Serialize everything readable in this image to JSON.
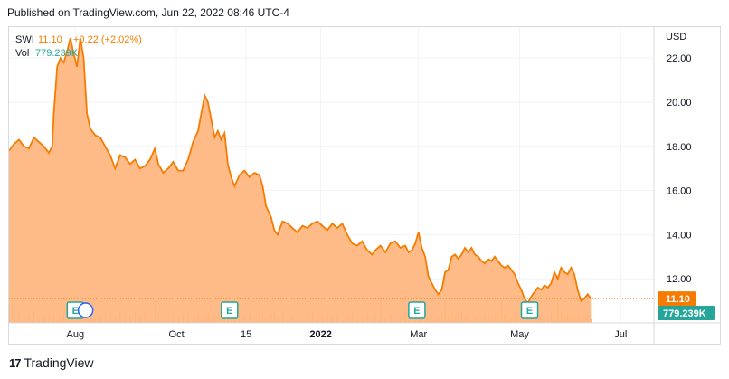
{
  "header": {
    "published": "Published on TradingView.com, Jun 22, 2022 08:46 UTC-4"
  },
  "legend": {
    "symbol": "SWI",
    "price": "11.10",
    "change": "+0.22 (+2.02%)",
    "vol_label": "Vol",
    "vol_value": "779.239K"
  },
  "footer": {
    "brand": "TradingView"
  },
  "colors": {
    "price_line": "#f57c00",
    "price_fill": "#ffb47a",
    "volume": "#f5b58a",
    "vol_badge": "#26a69a",
    "price_badge": "#f57c00",
    "earnings_badge": "#26a69a",
    "dividend_badge": "#2962ff"
  },
  "chart_data": {
    "type": "area",
    "currency": "USD",
    "y_ticks": [
      "12.00",
      "14.00",
      "16.00",
      "18.00",
      "20.00",
      "22.00"
    ],
    "ylim": [
      10.0,
      23.4
    ],
    "x_ticks": [
      {
        "label": "Aug",
        "day": 40,
        "bold": false
      },
      {
        "label": "Oct",
        "day": 101,
        "bold": false
      },
      {
        "label": "15",
        "day": 143,
        "bold": false
      },
      {
        "label": "2022",
        "day": 188,
        "bold": true
      },
      {
        "label": "Mar",
        "day": 247,
        "bold": false
      },
      {
        "label": "May",
        "day": 308,
        "bold": false
      },
      {
        "label": "Jul",
        "day": 369,
        "bold": false
      }
    ],
    "xlim": [
      0,
      389
    ],
    "last_price": 11.1,
    "last_price_label": "11.10",
    "last_volume_label": "779.239K",
    "series": [
      {
        "name": "SWI",
        "points": [
          [
            0,
            17.8
          ],
          [
            3,
            18.1
          ],
          [
            6,
            18.3
          ],
          [
            9,
            18.0
          ],
          [
            12,
            17.9
          ],
          [
            15,
            18.4
          ],
          [
            18,
            18.2
          ],
          [
            21,
            18.0
          ],
          [
            24,
            17.7
          ],
          [
            26,
            18.0
          ],
          [
            27,
            19.5
          ],
          [
            29,
            21.6
          ],
          [
            31,
            22.0
          ],
          [
            33,
            21.8
          ],
          [
            35,
            22.3
          ],
          [
            37,
            22.9
          ],
          [
            39,
            22.2
          ],
          [
            41,
            21.6
          ],
          [
            43,
            22.9
          ],
          [
            45,
            22.0
          ],
          [
            47,
            19.5
          ],
          [
            49,
            18.8
          ],
          [
            52,
            18.5
          ],
          [
            55,
            18.4
          ],
          [
            58,
            18.0
          ],
          [
            61,
            17.6
          ],
          [
            64,
            17.0
          ],
          [
            67,
            17.6
          ],
          [
            70,
            17.5
          ],
          [
            73,
            17.2
          ],
          [
            76,
            17.4
          ],
          [
            79,
            17.0
          ],
          [
            82,
            17.1
          ],
          [
            85,
            17.4
          ],
          [
            88,
            17.9
          ],
          [
            90,
            17.2
          ],
          [
            93,
            16.8
          ],
          [
            96,
            17.0
          ],
          [
            99,
            17.3
          ],
          [
            102,
            16.9
          ],
          [
            105,
            16.9
          ],
          [
            108,
            17.4
          ],
          [
            111,
            18.2
          ],
          [
            114,
            18.7
          ],
          [
            116,
            19.5
          ],
          [
            118,
            20.3
          ],
          [
            120,
            20.0
          ],
          [
            122,
            19.2
          ],
          [
            124,
            18.4
          ],
          [
            126,
            18.7
          ],
          [
            128,
            18.3
          ],
          [
            130,
            18.6
          ],
          [
            132,
            17.2
          ],
          [
            134,
            16.6
          ],
          [
            136,
            16.2
          ],
          [
            139,
            16.7
          ],
          [
            142,
            16.9
          ],
          [
            145,
            16.6
          ],
          [
            148,
            16.8
          ],
          [
            151,
            16.7
          ],
          [
            153,
            16.2
          ],
          [
            155,
            15.3
          ],
          [
            158,
            14.8
          ],
          [
            160,
            14.2
          ],
          [
            162,
            14.0
          ],
          [
            165,
            14.6
          ],
          [
            168,
            14.5
          ],
          [
            171,
            14.3
          ],
          [
            174,
            14.1
          ],
          [
            177,
            14.4
          ],
          [
            180,
            14.3
          ],
          [
            183,
            14.5
          ],
          [
            186,
            14.6
          ],
          [
            189,
            14.4
          ],
          [
            192,
            14.2
          ],
          [
            195,
            14.5
          ],
          [
            198,
            14.3
          ],
          [
            201,
            14.5
          ],
          [
            204,
            14.0
          ],
          [
            207,
            13.6
          ],
          [
            210,
            13.5
          ],
          [
            213,
            13.7
          ],
          [
            216,
            13.3
          ],
          [
            219,
            13.1
          ],
          [
            221,
            13.3
          ],
          [
            224,
            13.5
          ],
          [
            227,
            13.2
          ],
          [
            230,
            13.6
          ],
          [
            233,
            13.7
          ],
          [
            236,
            13.4
          ],
          [
            239,
            13.5
          ],
          [
            241,
            13.2
          ],
          [
            243,
            13.3
          ],
          [
            245,
            13.6
          ],
          [
            247,
            14.1
          ],
          [
            249,
            13.4
          ],
          [
            251,
            13.0
          ],
          [
            253,
            12.1
          ],
          [
            255,
            11.8
          ],
          [
            257,
            11.5
          ],
          [
            259,
            11.3
          ],
          [
            261,
            11.5
          ],
          [
            263,
            12.3
          ],
          [
            265,
            12.4
          ],
          [
            267,
            13.0
          ],
          [
            269,
            13.1
          ],
          [
            271,
            12.9
          ],
          [
            273,
            13.1
          ],
          [
            275,
            13.4
          ],
          [
            277,
            13.2
          ],
          [
            279,
            13.4
          ],
          [
            281,
            13.1
          ],
          [
            283,
            13.0
          ],
          [
            285,
            12.8
          ],
          [
            287,
            12.7
          ],
          [
            289,
            12.9
          ],
          [
            291,
            12.8
          ],
          [
            293,
            13.0
          ],
          [
            295,
            12.8
          ],
          [
            297,
            12.6
          ],
          [
            299,
            12.5
          ],
          [
            301,
            12.6
          ],
          [
            303,
            12.4
          ],
          [
            305,
            12.2
          ],
          [
            307,
            11.8
          ],
          [
            309,
            11.5
          ],
          [
            311,
            11.1
          ],
          [
            313,
            10.9
          ],
          [
            315,
            11.2
          ],
          [
            317,
            11.4
          ],
          [
            319,
            11.6
          ],
          [
            321,
            11.5
          ],
          [
            323,
            11.7
          ],
          [
            325,
            11.6
          ],
          [
            327,
            11.8
          ],
          [
            329,
            12.3
          ],
          [
            331,
            12.0
          ],
          [
            333,
            12.5
          ],
          [
            335,
            12.3
          ],
          [
            337,
            12.2
          ],
          [
            339,
            12.5
          ],
          [
            341,
            12.2
          ],
          [
            343,
            11.5
          ],
          [
            345,
            11.0
          ],
          [
            347,
            11.1
          ],
          [
            349,
            11.3
          ],
          [
            351,
            11.1
          ]
        ]
      }
    ],
    "events": [
      {
        "type": "earnings",
        "label": "E",
        "day": 40
      },
      {
        "type": "dividend",
        "label": "",
        "day": 44
      },
      {
        "type": "earnings",
        "label": "E",
        "day": 133
      },
      {
        "type": "earnings",
        "label": "E",
        "day": 246
      },
      {
        "type": "earnings",
        "label": "E",
        "day": 314
      }
    ],
    "grid": true
  }
}
